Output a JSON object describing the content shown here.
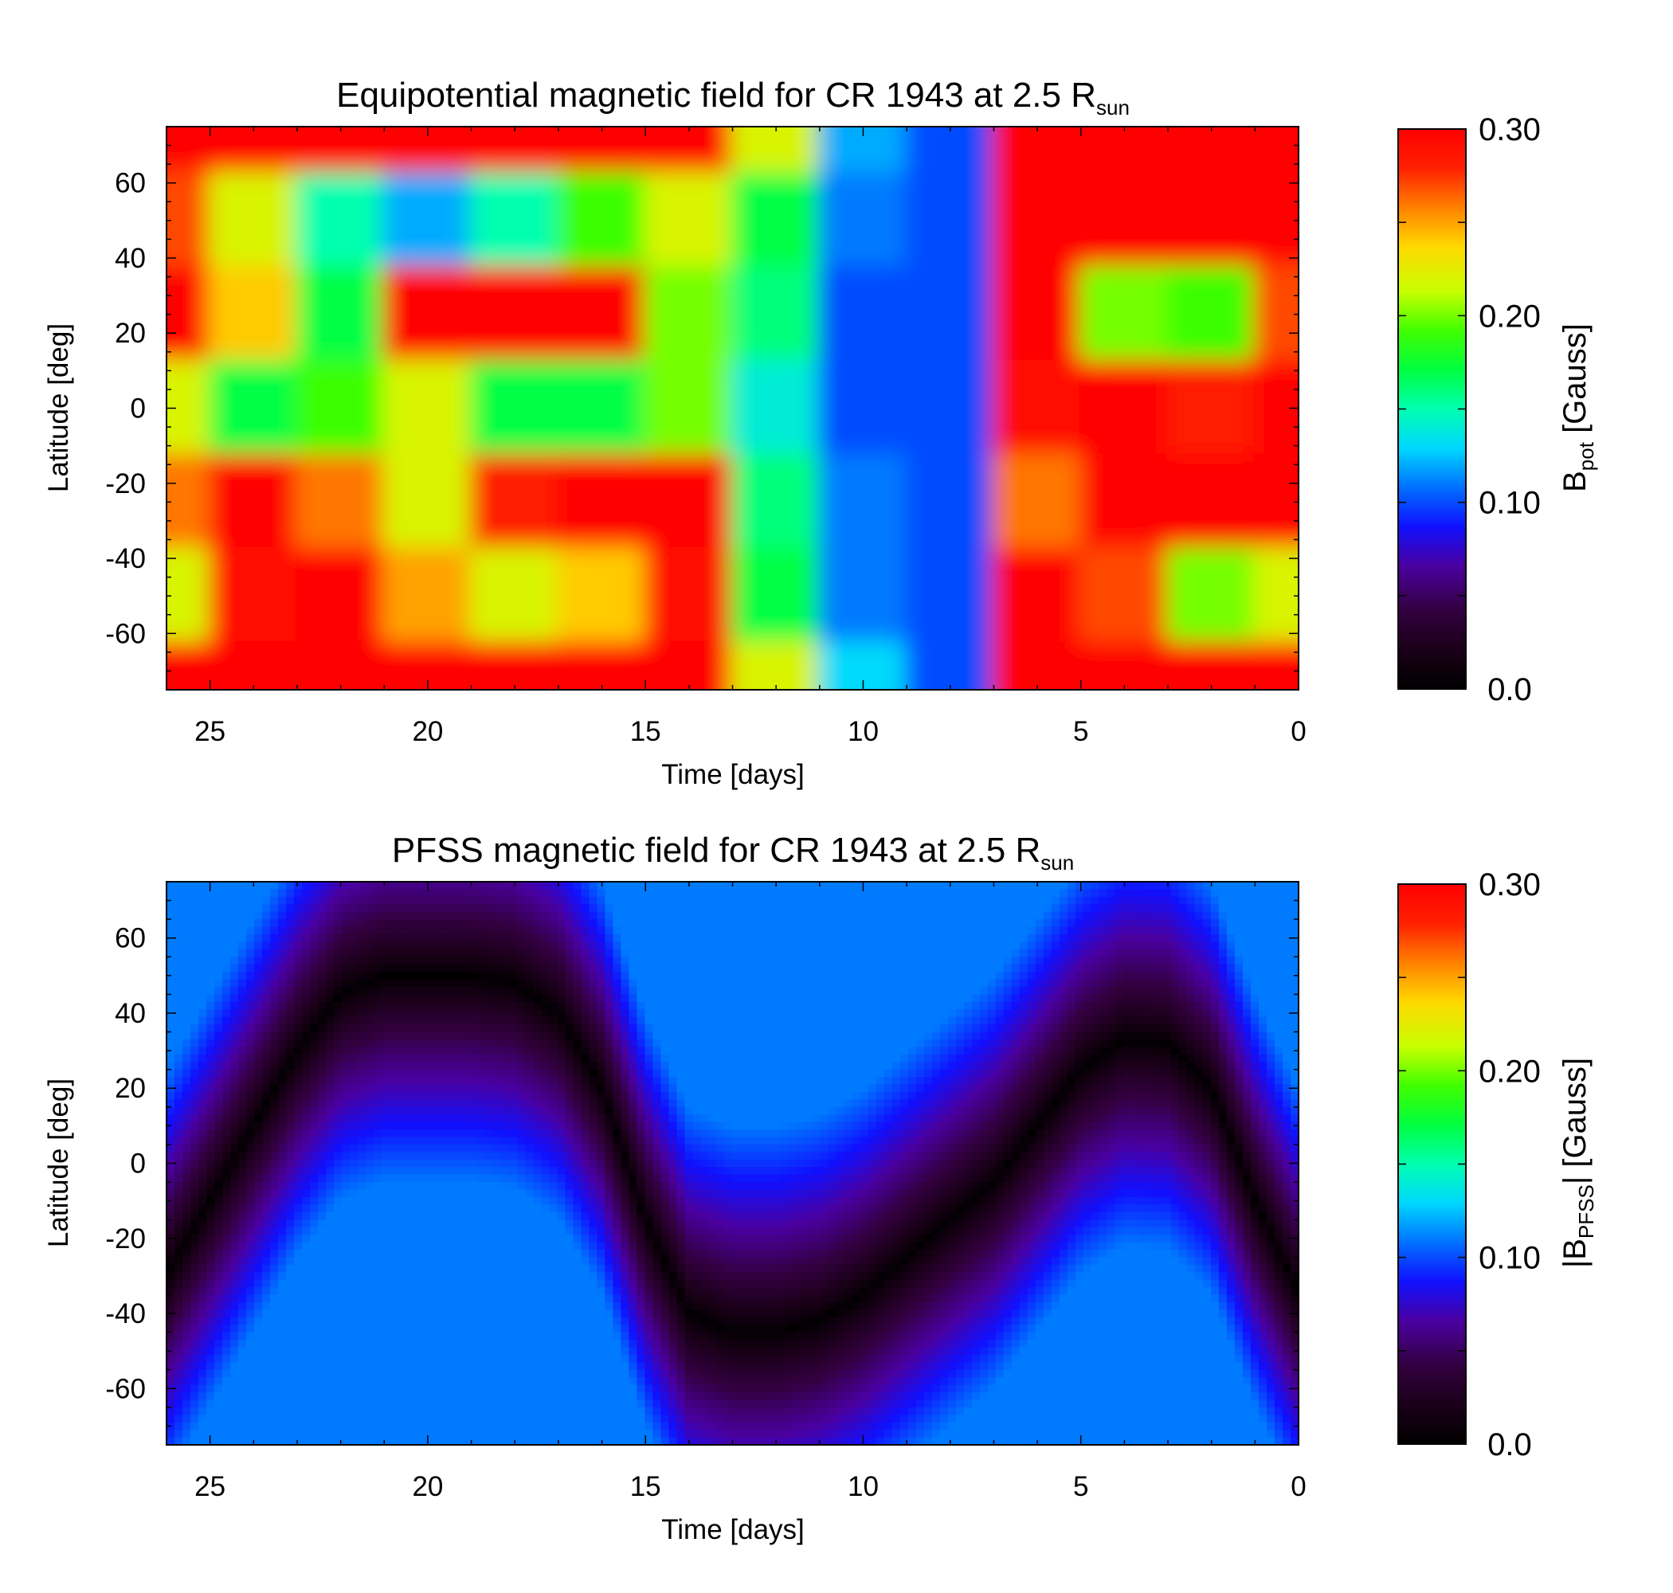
{
  "chart_data": [
    {
      "type": "heatmap",
      "title": "Equipotential magnetic field for CR 1943 at 2.5 R",
      "title_subscript": "sun",
      "xlabel": "Time [days]",
      "ylabel": "Latitude [deg]",
      "xlim": [
        26,
        0
      ],
      "ylim": [
        -75,
        75
      ],
      "x_ticks": [
        "25",
        "20",
        "15",
        "10",
        "5",
        "0"
      ],
      "y_ticks": [
        "60",
        "40",
        "20",
        "0",
        "-20",
        "-40",
        "-60"
      ],
      "colorbar": {
        "label": "B",
        "label_subscript": "pot",
        "label_suffix": " [Gauss]",
        "range": [
          0.0,
          0.3
        ],
        "ticks": [
          "0.30",
          "0.20",
          "0.10",
          "0.0"
        ],
        "colormap": "rainbow"
      },
      "description_values": {
        "time": [
          26,
          24,
          22,
          20,
          18,
          16,
          14,
          12,
          10,
          8,
          6,
          4,
          2,
          0
        ],
        "latitude": [
          75,
          50,
          25,
          0,
          -25,
          -50,
          -75
        ],
        "values_gauss": [
          [
            0.3,
            0.3,
            0.3,
            0.3,
            0.3,
            0.3,
            0.3,
            0.22,
            0.12,
            0.1,
            0.3,
            0.3,
            0.3,
            0.3
          ],
          [
            0.27,
            0.22,
            0.15,
            0.12,
            0.15,
            0.19,
            0.22,
            0.17,
            0.11,
            0.1,
            0.3,
            0.3,
            0.3,
            0.3
          ],
          [
            0.3,
            0.24,
            0.17,
            0.3,
            0.3,
            0.3,
            0.2,
            0.16,
            0.1,
            0.1,
            0.3,
            0.2,
            0.19,
            0.27
          ],
          [
            0.22,
            0.17,
            0.19,
            0.22,
            0.17,
            0.17,
            0.2,
            0.14,
            0.1,
            0.1,
            0.29,
            0.3,
            0.28,
            0.3
          ],
          [
            0.26,
            0.3,
            0.26,
            0.22,
            0.28,
            0.3,
            0.3,
            0.16,
            0.11,
            0.1,
            0.26,
            0.3,
            0.3,
            0.3
          ],
          [
            0.22,
            0.29,
            0.3,
            0.25,
            0.22,
            0.24,
            0.29,
            0.17,
            0.11,
            0.1,
            0.3,
            0.27,
            0.2,
            0.22
          ],
          [
            0.3,
            0.3,
            0.3,
            0.3,
            0.3,
            0.3,
            0.3,
            0.22,
            0.13,
            0.1,
            0.3,
            0.3,
            0.3,
            0.3
          ]
        ]
      }
    },
    {
      "type": "heatmap",
      "title": "PFSS magnetic field for CR 1943 at 2.5 R",
      "title_subscript": "sun",
      "xlabel": "Time [days]",
      "ylabel": "Latitude [deg]",
      "xlim": [
        26,
        0
      ],
      "ylim": [
        -75,
        75
      ],
      "x_ticks": [
        "25",
        "20",
        "15",
        "10",
        "5",
        "0"
      ],
      "y_ticks": [
        "60",
        "40",
        "20",
        "0",
        "-20",
        "-40",
        "-60"
      ],
      "colorbar": {
        "label": "|B",
        "label_subscript": "PFSS",
        "label_suffix": "| [Gauss]",
        "range": [
          0.0,
          0.3
        ],
        "ticks": [
          "0.30",
          "0.20",
          "0.10",
          "0.0"
        ],
        "colormap": "rainbow"
      },
      "neutral_line": {
        "time": [
          26,
          25,
          24,
          23,
          22,
          21,
          20,
          19,
          18,
          17,
          16,
          15,
          14,
          13,
          12,
          11,
          10,
          9,
          8,
          7,
          6,
          5,
          4,
          3,
          2,
          1,
          0
        ],
        "latitude": [
          -30,
          -10,
          10,
          30,
          45,
          50,
          50,
          50,
          48,
          40,
          20,
          -15,
          -40,
          -45,
          -45,
          -42,
          -35,
          -25,
          -15,
          -5,
          10,
          25,
          33,
          32,
          20,
          -10,
          -35
        ]
      },
      "description_values": {
        "field_max_gauss": 0.11,
        "field_min_gauss": 0.0
      }
    }
  ]
}
